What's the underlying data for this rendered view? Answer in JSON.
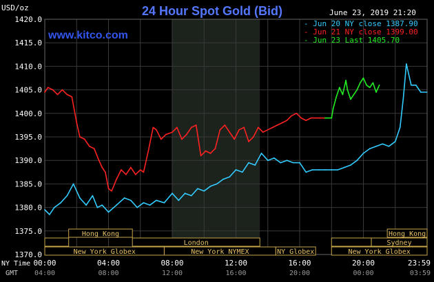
{
  "chart_data": {
    "type": "line",
    "title": "24 Hour Spot Gold (Bid)",
    "watermark": "www.kitco.com",
    "timestamp": "June 23, 2019 21:20",
    "y_unit": "USD/oz",
    "ylim": [
      1370.0,
      1420.0
    ],
    "y_ticks": [
      "1420.0",
      "1415.0",
      "1410.0",
      "1405.0",
      "1400.0",
      "1395.0",
      "1390.0",
      "1385.0",
      "1380.0",
      "1375.0",
      "1370.0"
    ],
    "x_ticks_ny": [
      "00:00",
      "04:00",
      "08:00",
      "12:00",
      "16:00",
      "20:00",
      "23:59"
    ],
    "x_ticks_gmt": [
      "04:00",
      "08:00",
      "12:00",
      "16:00",
      "20:00",
      "00:00",
      "03:59"
    ],
    "x_row_label_ny": "NY Time",
    "x_row_label_gmt": "GMT",
    "grid": true,
    "legend_position": "top-right",
    "series": [
      {
        "name": "Jun 20 NY close 1387.90",
        "color": "#33ccff",
        "x": [
          0.0,
          0.3,
          0.6,
          1.0,
          1.4,
          1.8,
          2.2,
          2.6,
          3.0,
          3.3,
          3.6,
          4.0,
          4.5,
          5.0,
          5.4,
          5.8,
          6.2,
          6.6,
          7.0,
          7.5,
          8.0,
          8.4,
          8.8,
          9.2,
          9.6,
          10.0,
          10.4,
          10.8,
          11.2,
          11.6,
          12.0,
          12.4,
          12.8,
          13.2,
          13.6,
          14.0,
          14.4,
          14.8,
          15.2,
          15.6,
          16.0,
          16.4,
          16.8,
          17.2,
          17.6,
          18.0,
          18.4,
          18.8,
          19.2,
          19.6,
          20.0,
          20.4,
          20.8,
          21.2,
          21.6,
          22.0,
          22.3,
          22.5,
          22.7,
          23.0,
          23.3,
          23.6,
          23.98
        ],
        "values": [
          1379.5,
          1378.5,
          1380.0,
          1381.0,
          1382.5,
          1385.0,
          1382.0,
          1380.5,
          1382.5,
          1380.0,
          1380.5,
          1379.0,
          1380.5,
          1382.0,
          1381.5,
          1380.0,
          1381.0,
          1380.5,
          1381.5,
          1381.0,
          1383.0,
          1381.5,
          1383.0,
          1382.5,
          1384.0,
          1383.5,
          1384.5,
          1385.0,
          1386.0,
          1386.5,
          1388.0,
          1387.5,
          1389.5,
          1389.0,
          1391.5,
          1390.0,
          1390.5,
          1389.5,
          1390.0,
          1389.5,
          1389.5,
          1387.5,
          1388.0,
          1388.0,
          1388.0,
          1388.0,
          1388.0,
          1388.5,
          1389.0,
          1390.0,
          1391.5,
          1392.5,
          1393.0,
          1393.5,
          1393.0,
          1394.0,
          1397.0,
          1403.0,
          1410.5,
          1406.0,
          1406.0,
          1404.5,
          1404.5
        ]
      },
      {
        "name": "Jun 21 NY close 1399.00",
        "color": "#ff2222",
        "x": [
          0.0,
          0.2,
          0.5,
          0.8,
          1.1,
          1.4,
          1.7,
          2.0,
          2.2,
          2.5,
          2.8,
          3.1,
          3.4,
          3.6,
          3.8,
          4.0,
          4.2,
          4.5,
          4.8,
          5.1,
          5.4,
          5.7,
          6.0,
          6.2,
          6.5,
          6.8,
          7.0,
          7.3,
          7.6,
          8.0,
          8.3,
          8.6,
          8.9,
          9.2,
          9.5,
          9.8,
          10.1,
          10.4,
          10.7,
          11.0,
          11.3,
          11.6,
          11.9,
          12.2,
          12.5,
          12.8,
          13.1,
          13.4,
          13.7,
          14.0,
          14.3,
          14.6,
          14.9,
          15.2,
          15.5,
          15.8,
          16.1,
          16.4,
          16.7,
          17.0,
          17.3,
          17.6
        ],
        "values": [
          1404.5,
          1405.5,
          1405.0,
          1404.0,
          1405.0,
          1404.0,
          1403.5,
          1398.0,
          1395.0,
          1394.5,
          1393.0,
          1392.5,
          1390.0,
          1388.5,
          1387.5,
          1384.0,
          1383.5,
          1386.0,
          1388.0,
          1387.0,
          1388.5,
          1387.0,
          1388.0,
          1387.5,
          1392.0,
          1397.0,
          1396.5,
          1394.5,
          1395.5,
          1396.0,
          1397.0,
          1394.5,
          1395.5,
          1397.0,
          1397.5,
          1391.0,
          1392.0,
          1391.5,
          1392.5,
          1396.5,
          1397.5,
          1396.0,
          1394.5,
          1396.5,
          1397.0,
          1394.0,
          1395.0,
          1397.0,
          1396.0,
          1396.5,
          1397.0,
          1397.5,
          1398.0,
          1398.5,
          1399.5,
          1400.0,
          1399.0,
          1398.5,
          1399.0,
          1399.0,
          1399.0,
          1399.0
        ]
      },
      {
        "name": "Jun 23 Last 1405.70",
        "color": "#22ee22",
        "x": [
          17.6,
          18.0,
          18.1,
          18.3,
          18.5,
          18.7,
          18.9,
          19.0,
          19.2,
          19.4,
          19.6,
          19.8,
          20.0,
          20.2,
          20.4,
          20.6,
          20.8,
          21.0
        ],
        "values": [
          1399.0,
          1399.0,
          1401.0,
          1403.5,
          1405.5,
          1404.0,
          1407.0,
          1405.0,
          1403.0,
          1404.0,
          1405.0,
          1406.5,
          1407.5,
          1406.0,
          1405.5,
          1406.5,
          1404.5,
          1406.0
        ]
      }
    ],
    "sessions": [
      {
        "name": "Hong Kong",
        "row": 0,
        "start": 1.5,
        "end": 5.5
      },
      {
        "name": "",
        "row": 1,
        "start": 0.0,
        "end": 1.5
      },
      {
        "name": "London",
        "row": 1,
        "start": 5.5,
        "end": 13.5
      },
      {
        "name": "New York Globex",
        "row": 2,
        "start": 0.0,
        "end": 7.5
      },
      {
        "name": "New York NYMEX",
        "row": 2,
        "start": 7.5,
        "end": 14.5
      },
      {
        "name": "NY Globex",
        "row": 2,
        "start": 14.5,
        "end": 17.0
      },
      {
        "name": "Hong Kong",
        "row": 0,
        "start": 21.5,
        "end": 24.0
      },
      {
        "name": "",
        "row": 1,
        "start": 18.0,
        "end": 20.5
      },
      {
        "name": "Sydney",
        "row": 1,
        "start": 20.5,
        "end": 24.0
      },
      {
        "name": "New York Globex",
        "row": 2,
        "start": 18.0,
        "end": 24.0
      }
    ],
    "highlight_band": {
      "start": 8.0,
      "end": 13.5
    }
  }
}
